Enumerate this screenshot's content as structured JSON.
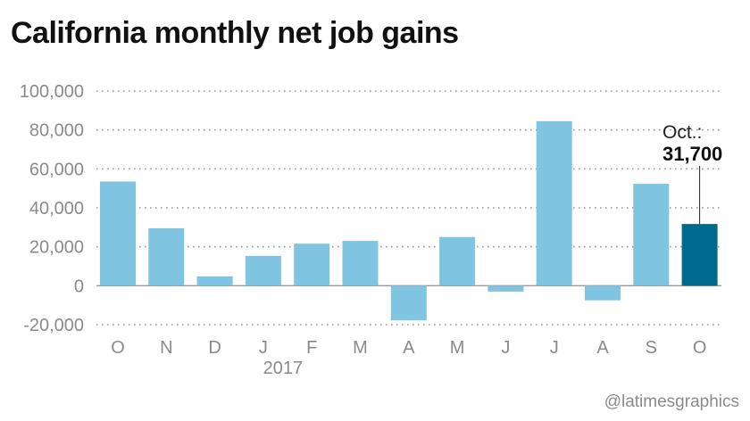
{
  "chart_data": {
    "type": "bar",
    "title": "California monthly net job gains",
    "categories": [
      "O",
      "N",
      "D",
      "J",
      "F",
      "M",
      "A",
      "M",
      "J",
      "J",
      "A",
      "S",
      "O"
    ],
    "year_label": "2017",
    "values": [
      53500,
      29500,
      4800,
      15300,
      21600,
      23000,
      -17800,
      25000,
      -3000,
      84500,
      -7500,
      52300,
      31700
    ],
    "ylim": [
      -20000,
      100000
    ],
    "yticks": [
      100000,
      80000,
      60000,
      40000,
      20000,
      0,
      -20000
    ],
    "ytick_labels": [
      "100,000",
      "80,000",
      "60,000",
      "40,000",
      "20,000",
      "0",
      "-20,000"
    ],
    "grid": true,
    "highlight_index": 12,
    "annotation": {
      "label": "Oct.:",
      "value": "31,700"
    },
    "colors": {
      "bar": "#7fc4e0",
      "highlight": "#006a8e",
      "grid": "#9a9a9a",
      "text": "#8a8a8a"
    }
  },
  "credit": "@latimesgraphics"
}
